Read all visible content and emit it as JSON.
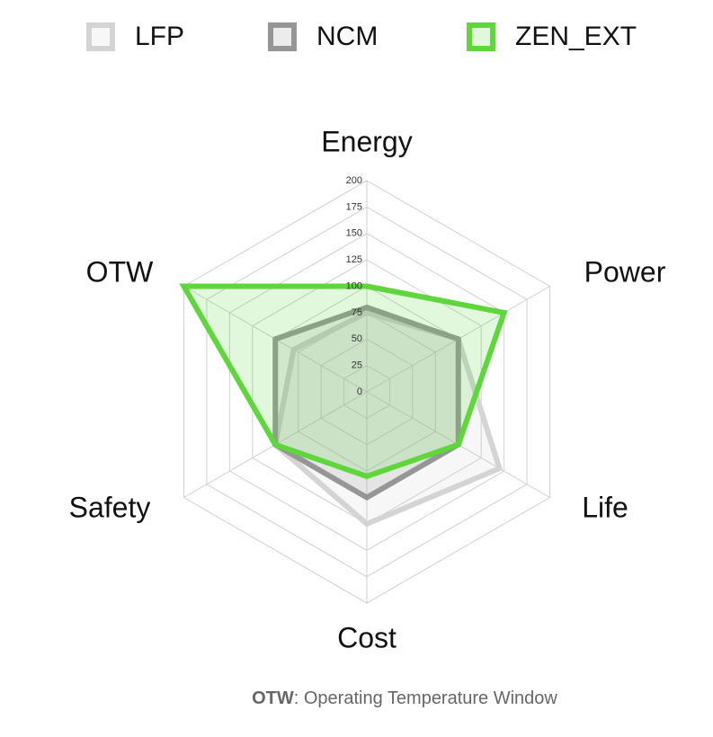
{
  "chart_data": {
    "type": "radar",
    "categories": [
      "Energy",
      "Power",
      "Life",
      "Cost",
      "Safety",
      "OTW"
    ],
    "series": [
      {
        "name": "LFP",
        "color": "#d4d4d4",
        "values": [
          75,
          100,
          145,
          125,
          100,
          80
        ]
      },
      {
        "name": "NCM",
        "color": "#969696",
        "values": [
          80,
          100,
          100,
          100,
          100,
          100
        ]
      },
      {
        "name": "ZEN_EXT",
        "color": "#5ed63c",
        "values": [
          100,
          150,
          100,
          80,
          100,
          200
        ]
      }
    ],
    "rlim": [
      0,
      200
    ],
    "rticks": [
      0,
      25,
      50,
      75,
      100,
      125,
      150,
      175,
      200
    ],
    "grid": true,
    "footnote": {
      "term": "OTW",
      "text": ": Operating Temperature Window"
    }
  }
}
